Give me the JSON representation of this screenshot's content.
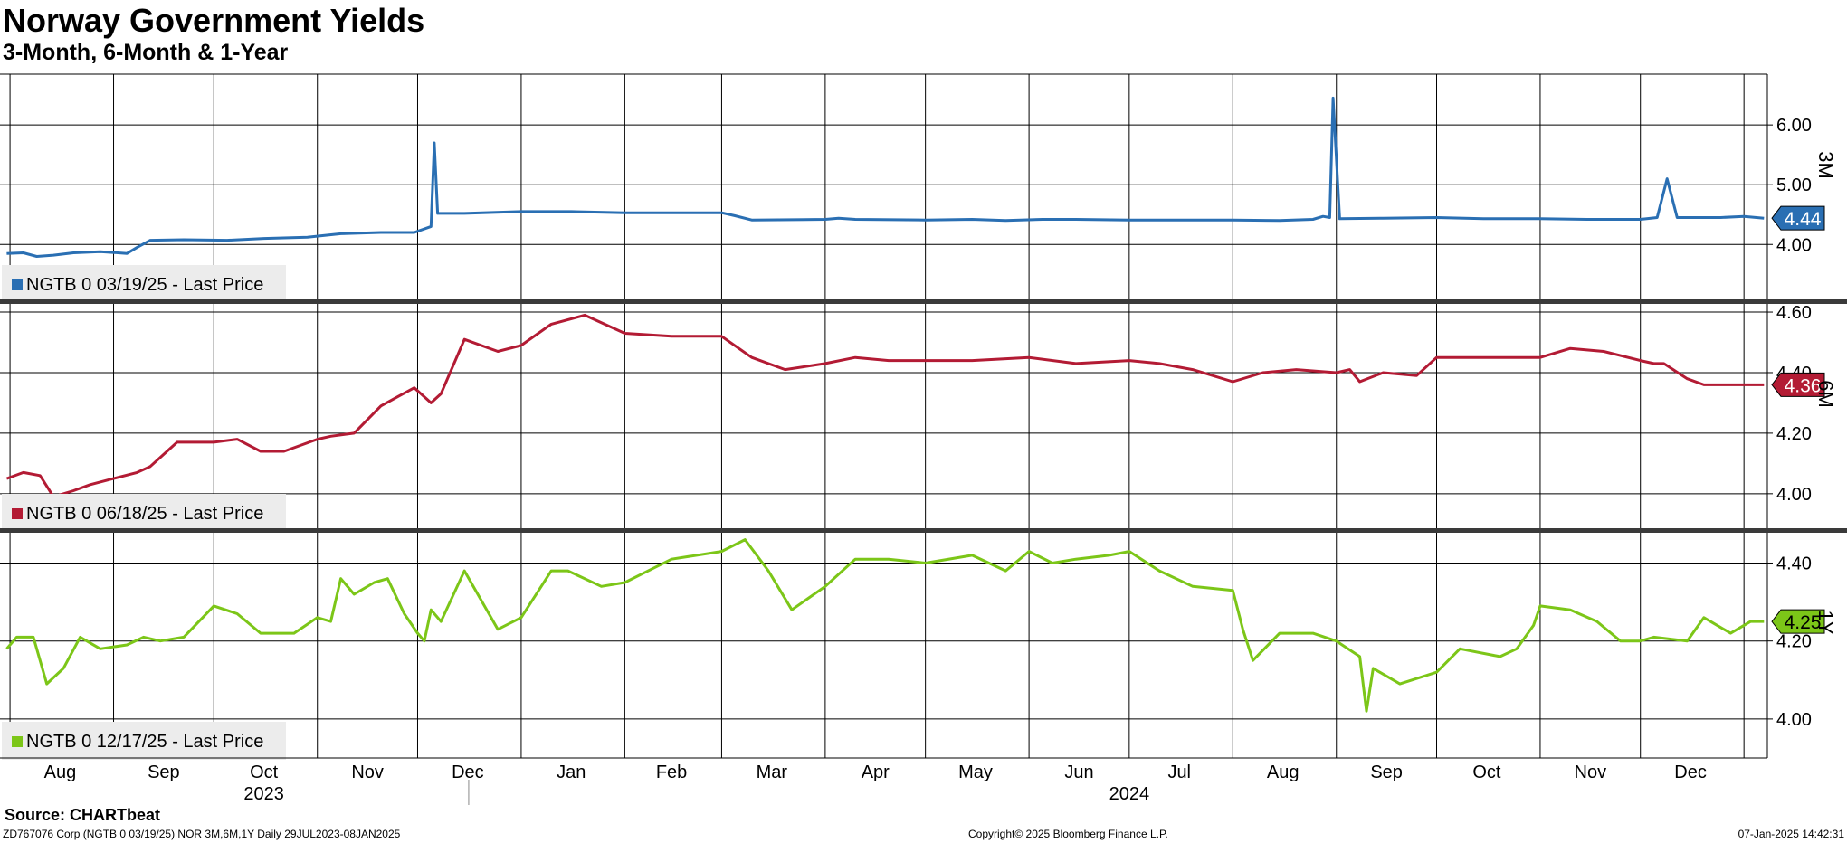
{
  "header": {
    "title": "Norway Government Yields",
    "subtitle": "3-Month, 6-Month & 1-Year"
  },
  "footer": {
    "source": "Source: CHARTbeat",
    "left": "ZD767076 Corp (NGTB 0 03/19/25) NOR 3M,6M,1Y  Daily 29JUL2023-08JAN2025",
    "mid": "Copyright© 2025 Bloomberg Finance L.P.",
    "right": "07-Jan-2025 14:42:31"
  },
  "colors": {
    "s3m": "#2a6fb3",
    "s6m": "#b31b34",
    "s1y": "#7cc618"
  },
  "chart_data": [
    {
      "type": "line",
      "panel_label": "3M",
      "legend": "NGTB 0 03/19/25 - Last Price",
      "last_value_label": "4.44",
      "yticks": [
        "4.00",
        "5.00",
        "6.00"
      ],
      "ylim": [
        3.05,
        6.85
      ],
      "x": [
        "2023-07-31",
        "2023-08-05",
        "2023-08-09",
        "2023-08-14",
        "2023-08-20",
        "2023-08-28",
        "2023-09-05",
        "2023-09-08",
        "2023-09-12",
        "2023-09-22",
        "2023-10-05",
        "2023-10-16",
        "2023-10-29",
        "2023-11-08",
        "2023-11-20",
        "2023-11-30",
        "2023-12-05",
        "2023-12-06",
        "2023-12-07",
        "2023-12-15",
        "2024-01-01",
        "2024-01-16",
        "2024-02-01",
        "2024-02-15",
        "2024-03-01",
        "2024-03-05",
        "2024-03-10",
        "2024-04-01",
        "2024-04-05",
        "2024-04-10",
        "2024-05-01",
        "2024-05-15",
        "2024-05-25",
        "2024-06-05",
        "2024-06-15",
        "2024-07-01",
        "2024-07-15",
        "2024-08-01",
        "2024-08-15",
        "2024-08-25",
        "2024-08-28",
        "2024-08-30",
        "2024-08-31",
        "2024-09-02",
        "2024-09-15",
        "2024-10-01",
        "2024-10-15",
        "2024-11-01",
        "2024-11-15",
        "2024-12-01",
        "2024-12-06",
        "2024-12-09",
        "2024-12-12",
        "2024-12-20",
        "2024-12-25",
        "2025-01-01",
        "2025-01-07"
      ],
      "values": [
        3.85,
        3.86,
        3.8,
        3.82,
        3.86,
        3.88,
        3.85,
        3.95,
        4.07,
        4.08,
        4.07,
        4.1,
        4.12,
        4.18,
        4.2,
        4.2,
        4.3,
        5.7,
        4.52,
        4.52,
        4.55,
        4.55,
        4.53,
        4.53,
        4.53,
        4.48,
        4.41,
        4.42,
        4.44,
        4.42,
        4.41,
        4.42,
        4.4,
        4.42,
        4.42,
        4.41,
        4.41,
        4.41,
        4.4,
        4.42,
        4.47,
        4.45,
        6.45,
        4.43,
        4.44,
        4.45,
        4.43,
        4.43,
        4.42,
        4.42,
        4.45,
        5.1,
        4.45,
        4.45,
        4.45,
        4.47,
        4.44
      ]
    },
    {
      "type": "line",
      "panel_label": "6M",
      "legend": "NGTB 0 06/18/25 - Last Price",
      "last_value_label": "4.36",
      "yticks": [
        "4.00",
        "4.20",
        "4.40",
        "4.60"
      ],
      "ylim": [
        3.88,
        4.63
      ],
      "x": [
        "2023-07-31",
        "2023-08-05",
        "2023-08-10",
        "2023-08-14",
        "2023-08-20",
        "2023-08-25",
        "2023-09-01",
        "2023-09-08",
        "2023-09-12",
        "2023-09-20",
        "2023-10-01",
        "2023-10-08",
        "2023-10-15",
        "2023-10-22",
        "2023-11-01",
        "2023-11-05",
        "2023-11-12",
        "2023-11-20",
        "2023-11-25",
        "2023-11-30",
        "2023-12-05",
        "2023-12-08",
        "2023-12-15",
        "2023-12-25",
        "2024-01-01",
        "2024-01-10",
        "2024-01-20",
        "2024-02-01",
        "2024-02-15",
        "2024-03-01",
        "2024-03-10",
        "2024-03-20",
        "2024-04-01",
        "2024-04-10",
        "2024-04-20",
        "2024-05-01",
        "2024-05-15",
        "2024-06-01",
        "2024-06-15",
        "2024-07-01",
        "2024-07-10",
        "2024-07-20",
        "2024-08-01",
        "2024-08-10",
        "2024-08-20",
        "2024-09-01",
        "2024-09-05",
        "2024-09-08",
        "2024-09-15",
        "2024-09-25",
        "2024-10-01",
        "2024-10-15",
        "2024-11-01",
        "2024-11-10",
        "2024-11-20",
        "2024-12-01",
        "2024-12-05",
        "2024-12-08",
        "2024-12-15",
        "2024-12-20",
        "2025-01-01",
        "2025-01-07"
      ],
      "values": [
        4.05,
        4.07,
        4.06,
        3.99,
        4.01,
        4.03,
        4.05,
        4.07,
        4.09,
        4.17,
        4.17,
        4.18,
        4.14,
        4.14,
        4.18,
        4.19,
        4.2,
        4.29,
        4.32,
        4.35,
        4.3,
        4.33,
        4.51,
        4.47,
        4.49,
        4.56,
        4.59,
        4.53,
        4.52,
        4.52,
        4.45,
        4.41,
        4.43,
        4.45,
        4.44,
        4.44,
        4.44,
        4.45,
        4.43,
        4.44,
        4.43,
        4.41,
        4.37,
        4.4,
        4.41,
        4.4,
        4.41,
        4.37,
        4.4,
        4.39,
        4.45,
        4.45,
        4.45,
        4.48,
        4.47,
        4.44,
        4.43,
        4.43,
        4.38,
        4.36,
        4.36,
        4.36
      ]
    },
    {
      "type": "line",
      "panel_label": "1Y",
      "legend": "NGTB 0 12/17/25 - Last Price",
      "last_value_label": "4.25",
      "yticks": [
        "4.00",
        "4.20",
        "4.40"
      ],
      "ylim": [
        3.9,
        4.48
      ],
      "x": [
        "2023-07-31",
        "2023-08-03",
        "2023-08-08",
        "2023-08-12",
        "2023-08-17",
        "2023-08-22",
        "2023-08-28",
        "2023-09-05",
        "2023-09-10",
        "2023-09-15",
        "2023-09-22",
        "2023-10-01",
        "2023-10-08",
        "2023-10-15",
        "2023-10-25",
        "2023-11-01",
        "2023-11-05",
        "2023-11-08",
        "2023-11-12",
        "2023-11-18",
        "2023-11-22",
        "2023-11-27",
        "2023-12-01",
        "2023-12-03",
        "2023-12-05",
        "2023-12-08",
        "2023-12-15",
        "2023-12-25",
        "2024-01-01",
        "2024-01-10",
        "2024-01-15",
        "2024-01-25",
        "2024-02-01",
        "2024-02-15",
        "2024-03-01",
        "2024-03-08",
        "2024-03-15",
        "2024-03-22",
        "2024-04-01",
        "2024-04-10",
        "2024-04-20",
        "2024-05-01",
        "2024-05-15",
        "2024-05-25",
        "2024-06-01",
        "2024-06-08",
        "2024-06-15",
        "2024-06-25",
        "2024-07-01",
        "2024-07-10",
        "2024-07-20",
        "2024-08-01",
        "2024-08-04",
        "2024-08-07",
        "2024-08-15",
        "2024-08-25",
        "2024-09-01",
        "2024-09-08",
        "2024-09-10",
        "2024-09-12",
        "2024-09-20",
        "2024-10-01",
        "2024-10-08",
        "2024-10-20",
        "2024-10-25",
        "2024-10-30",
        "2024-11-01",
        "2024-11-10",
        "2024-11-18",
        "2024-11-25",
        "2024-12-01",
        "2024-12-05",
        "2024-12-15",
        "2024-12-20",
        "2024-12-28",
        "2025-01-03",
        "2025-01-07"
      ],
      "values": [
        4.18,
        4.21,
        4.21,
        4.09,
        4.13,
        4.21,
        4.18,
        4.19,
        4.21,
        4.2,
        4.21,
        4.29,
        4.27,
        4.22,
        4.22,
        4.26,
        4.25,
        4.36,
        4.32,
        4.35,
        4.36,
        4.27,
        4.22,
        4.2,
        4.28,
        4.25,
        4.38,
        4.23,
        4.26,
        4.38,
        4.38,
        4.34,
        4.35,
        4.41,
        4.43,
        4.46,
        4.38,
        4.28,
        4.34,
        4.41,
        4.41,
        4.4,
        4.42,
        4.38,
        4.43,
        4.4,
        4.41,
        4.42,
        4.43,
        4.38,
        4.34,
        4.33,
        4.23,
        4.15,
        4.22,
        4.22,
        4.2,
        4.16,
        4.02,
        4.13,
        4.09,
        4.12,
        4.18,
        4.16,
        4.18,
        4.24,
        4.29,
        4.28,
        4.25,
        4.2,
        4.2,
        4.21,
        4.2,
        4.26,
        4.22,
        4.25,
        4.25
      ]
    }
  ],
  "x_axis": {
    "range": [
      "2023-07-29",
      "2025-01-08"
    ],
    "month_ticks": [
      "2023-08-01",
      "2023-09-01",
      "2023-10-01",
      "2023-11-01",
      "2023-12-01",
      "2024-01-01",
      "2024-02-01",
      "2024-03-01",
      "2024-04-01",
      "2024-05-01",
      "2024-06-01",
      "2024-07-01",
      "2024-08-01",
      "2024-09-01",
      "2024-10-01",
      "2024-11-01",
      "2024-12-01",
      "2025-01-01"
    ],
    "month_labels": [
      {
        "label": "Aug",
        "at": "2023-08-16"
      },
      {
        "label": "Sep",
        "at": "2023-09-16"
      },
      {
        "label": "Oct",
        "at": "2023-10-16"
      },
      {
        "label": "Nov",
        "at": "2023-11-16"
      },
      {
        "label": "Dec",
        "at": "2023-12-16"
      },
      {
        "label": "Jan",
        "at": "2024-01-16"
      },
      {
        "label": "Feb",
        "at": "2024-02-15"
      },
      {
        "label": "Mar",
        "at": "2024-03-16"
      },
      {
        "label": "Apr",
        "at": "2024-04-16"
      },
      {
        "label": "May",
        "at": "2024-05-16"
      },
      {
        "label": "Jun",
        "at": "2024-06-16"
      },
      {
        "label": "Jul",
        "at": "2024-07-16"
      },
      {
        "label": "Aug",
        "at": "2024-08-16"
      },
      {
        "label": "Sep",
        "at": "2024-09-16"
      },
      {
        "label": "Oct",
        "at": "2024-10-16"
      },
      {
        "label": "Nov",
        "at": "2024-11-16"
      },
      {
        "label": "Dec",
        "at": "2024-12-16"
      }
    ],
    "years": [
      {
        "label": "2023",
        "at": "2023-10-16"
      },
      {
        "label": "2024",
        "at": "2024-07-01"
      }
    ],
    "year_divider": "2024-01-01"
  }
}
